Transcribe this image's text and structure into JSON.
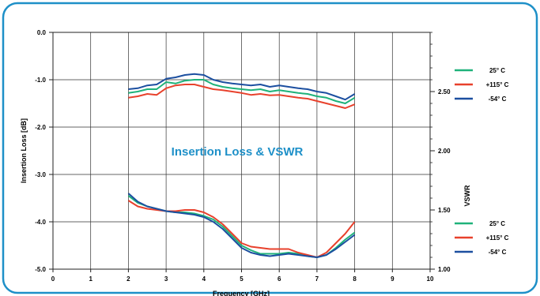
{
  "chart_data": {
    "type": "line",
    "title": "Insertion Loss & VSWR",
    "xlabel": "Frequency [GHz]",
    "ylabel_left": "Insertion Loss [dB]",
    "ylabel_right": "VSWR",
    "xlim": [
      0,
      10
    ],
    "ylim_left": [
      -5.0,
      0.0
    ],
    "ylim_right": [
      1.0,
      3.0
    ],
    "x_ticks": [
      "0",
      "1",
      "2",
      "3",
      "4",
      "5",
      "6",
      "7",
      "8",
      "9",
      "10"
    ],
    "y_left_ticks": [
      "0.0",
      "-1.0",
      "-2.0",
      "-3.0",
      "-4.0",
      "-5.0"
    ],
    "y_right_ticks": [
      "2.50",
      "2.00",
      "1.50",
      "1.00"
    ],
    "grid": true,
    "colors": {
      "25": "#1fb27a",
      "115": "#e8412c",
      "-54": "#1c4fa0",
      "title": "#1e90c8",
      "frame": "#1e90c8"
    },
    "legend_insertion_loss": [
      "25° C",
      "+115° C",
      "-54° C"
    ],
    "legend_vswr": [
      "25° C",
      "+115° C",
      "-54° C"
    ],
    "insertion_loss": {
      "x": [
        2.0,
        2.25,
        2.5,
        2.75,
        3.0,
        3.25,
        3.5,
        3.75,
        4.0,
        4.25,
        4.5,
        4.75,
        5.0,
        5.25,
        5.5,
        5.75,
        6.0,
        6.25,
        6.5,
        6.75,
        7.0,
        7.25,
        7.5,
        7.75,
        8.0
      ],
      "series": [
        {
          "name": "25° C",
          "values": [
            -1.28,
            -1.25,
            -1.2,
            -1.2,
            -1.05,
            -1.08,
            -1.02,
            -1.0,
            -1.0,
            -1.1,
            -1.15,
            -1.18,
            -1.2,
            -1.22,
            -1.2,
            -1.25,
            -1.22,
            -1.25,
            -1.28,
            -1.3,
            -1.35,
            -1.38,
            -1.45,
            -1.5,
            -1.38
          ]
        },
        {
          "name": "+115° C",
          "values": [
            -1.38,
            -1.35,
            -1.3,
            -1.32,
            -1.18,
            -1.12,
            -1.1,
            -1.1,
            -1.15,
            -1.2,
            -1.22,
            -1.25,
            -1.28,
            -1.32,
            -1.3,
            -1.33,
            -1.32,
            -1.35,
            -1.38,
            -1.4,
            -1.45,
            -1.5,
            -1.55,
            -1.6,
            -1.52
          ]
        },
        {
          "name": "-54° C",
          "values": [
            -1.2,
            -1.18,
            -1.12,
            -1.1,
            -0.98,
            -0.95,
            -0.9,
            -0.88,
            -0.9,
            -1.0,
            -1.05,
            -1.08,
            -1.1,
            -1.12,
            -1.1,
            -1.15,
            -1.12,
            -1.15,
            -1.18,
            -1.2,
            -1.25,
            -1.28,
            -1.35,
            -1.42,
            -1.3
          ]
        }
      ]
    },
    "vswr": {
      "x": [
        2.0,
        2.25,
        2.5,
        2.75,
        3.0,
        3.25,
        3.5,
        3.75,
        4.0,
        4.25,
        4.5,
        4.75,
        5.0,
        5.25,
        5.5,
        5.75,
        6.0,
        6.25,
        6.5,
        6.75,
        7.0,
        7.25,
        7.5,
        7.75,
        8.0
      ],
      "series": [
        {
          "name": "25° C",
          "values": [
            1.62,
            1.56,
            1.53,
            1.51,
            1.49,
            1.48,
            1.48,
            1.47,
            1.45,
            1.42,
            1.36,
            1.28,
            1.2,
            1.16,
            1.13,
            1.13,
            1.13,
            1.14,
            1.13,
            1.11,
            1.1,
            1.12,
            1.18,
            1.25,
            1.31
          ]
        },
        {
          "name": "+115° C",
          "values": [
            1.58,
            1.53,
            1.51,
            1.5,
            1.49,
            1.49,
            1.5,
            1.5,
            1.48,
            1.44,
            1.38,
            1.3,
            1.22,
            1.19,
            1.18,
            1.17,
            1.17,
            1.17,
            1.14,
            1.12,
            1.1,
            1.14,
            1.22,
            1.3,
            1.4
          ]
        },
        {
          "name": "-54° C",
          "values": [
            1.64,
            1.57,
            1.53,
            1.51,
            1.49,
            1.48,
            1.47,
            1.46,
            1.44,
            1.4,
            1.34,
            1.26,
            1.18,
            1.14,
            1.12,
            1.11,
            1.12,
            1.13,
            1.12,
            1.11,
            1.1,
            1.12,
            1.17,
            1.23,
            1.29
          ]
        }
      ]
    }
  }
}
